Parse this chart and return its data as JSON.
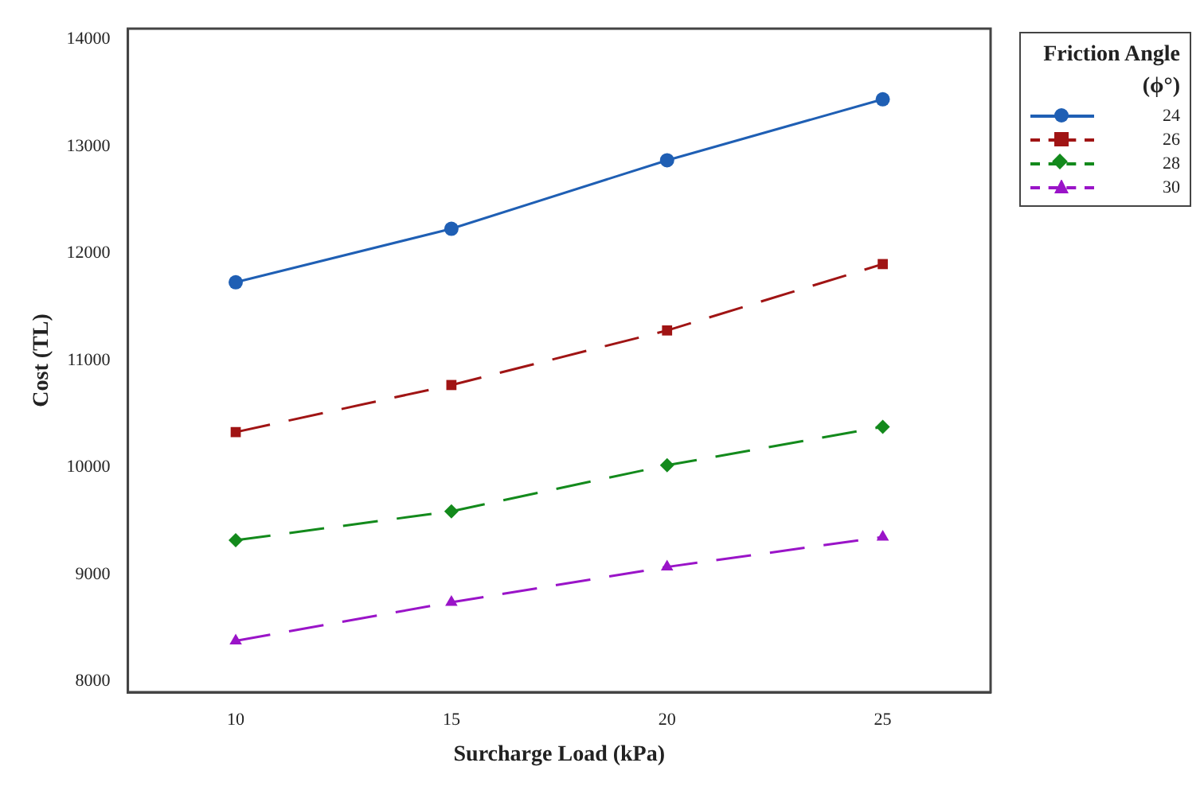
{
  "chart_data": {
    "type": "line",
    "xlabel": "Surcharge Load (kPa)",
    "ylabel": "Cost (TL)",
    "legend_title": "Friction Angle (ϕ°)",
    "legend": "right",
    "x": [
      10,
      15,
      20,
      25
    ],
    "xlim": [
      7.5,
      27.5
    ],
    "xticks": [
      10,
      15,
      20,
      25
    ],
    "ylim": [
      7900,
      14100
    ],
    "yticks": [
      8000,
      9000,
      10000,
      11000,
      12000,
      13000,
      14000
    ],
    "grid": false,
    "series": [
      {
        "name": "24",
        "color": "#1f5fb4",
        "marker": "circle",
        "line_style": "solid",
        "values": [
          11730,
          12230,
          12870,
          13440
        ]
      },
      {
        "name": "26",
        "color": "#a01414",
        "marker": "square",
        "line_style": "dashed",
        "values": [
          10330,
          10770,
          11280,
          11900
        ]
      },
      {
        "name": "28",
        "color": "#138a1c",
        "marker": "diamond",
        "line_style": "dashed",
        "values": [
          9320,
          9590,
          10020,
          10380
        ]
      },
      {
        "name": "30",
        "color": "#9a14c8",
        "marker": "triangle",
        "line_style": "dashed",
        "values": [
          8380,
          8740,
          9070,
          9350
        ]
      }
    ]
  }
}
